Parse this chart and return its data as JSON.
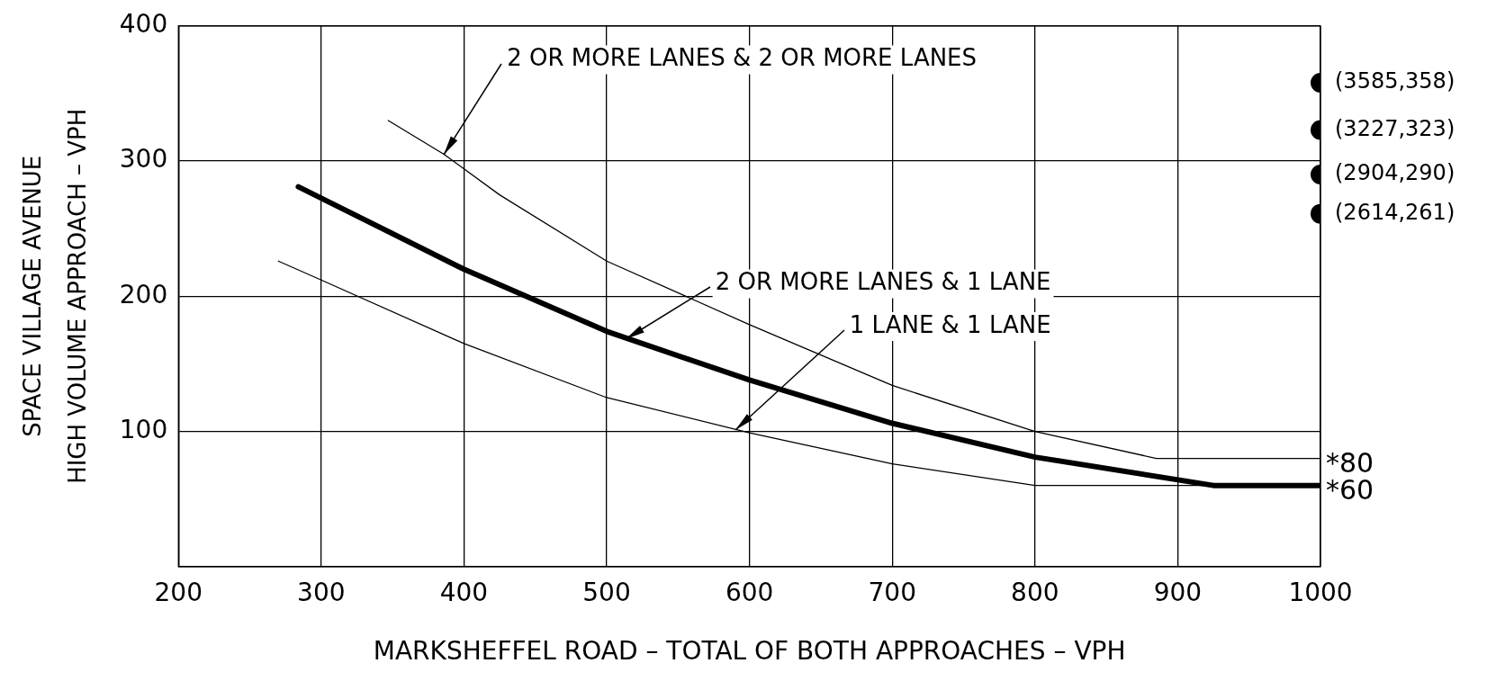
{
  "chart_data": {
    "type": "line",
    "xlabel": "MARKSHEFFEL ROAD – TOTAL OF BOTH APPROACHES – VPH",
    "ylabel": "SPACE VILLAGE AVENUE\nHIGH VOLUME APPROACH – VPH",
    "xlim": [
      200,
      1000
    ],
    "xticks": [
      200,
      300,
      400,
      500,
      600,
      700,
      800,
      900,
      1000
    ],
    "ylim": [
      0,
      400
    ],
    "yticks": [
      {
        "value": 0,
        "label": null
      },
      100,
      200,
      300,
      400
    ],
    "grid": true,
    "legend": false,
    "marker": "none",
    "line_style": "solid",
    "series": [
      {
        "color": "#000000",
        "x": [
          347,
          386,
          425,
          500,
          600,
          700,
          800,
          885,
          1000
        ],
        "values": [
          330,
          305,
          275,
          226,
          179,
          134,
          100,
          80,
          80
        ]
      },
      {
        "color": "#000000",
        "x": [
          284,
          400,
          500,
          600,
          700,
          800,
          925,
          1000
        ],
        "values": [
          281,
          220,
          174,
          138,
          106,
          81,
          60,
          60
        ]
      },
      {
        "color": "#000000",
        "x": [
          270,
          300,
          400,
          500,
          600,
          700,
          800,
          925
        ],
        "values": [
          226,
          212,
          165,
          125,
          99,
          76,
          60,
          60
        ]
      },
      {
        "type": "scatter",
        "marker": "circle",
        "color": "#000000",
        "x": [
          1000,
          1000,
          1000,
          1000
        ],
        "values": [
          358,
          323,
          290,
          261
        ],
        "value_labels": [
          "(3585,358)",
          "(3227,323)",
          "(2904,290)",
          "(2614,261)"
        ]
      }
    ],
    "annotations": [
      {
        "text": "2 OR MORE LANES & 2 OR MORE LANES",
        "x": 386,
        "y": 305
      },
      {
        "text": "2 OR MORE LANES & 1 LANE",
        "x": 513,
        "y": 168
      },
      {
        "text": "1 LANE & 1 LANE",
        "x": 590,
        "y": 101
      },
      {
        "text": "*80",
        "x": 1000,
        "y": 80
      },
      {
        "text": "*60",
        "x": 1000,
        "y": 60
      }
    ]
  }
}
